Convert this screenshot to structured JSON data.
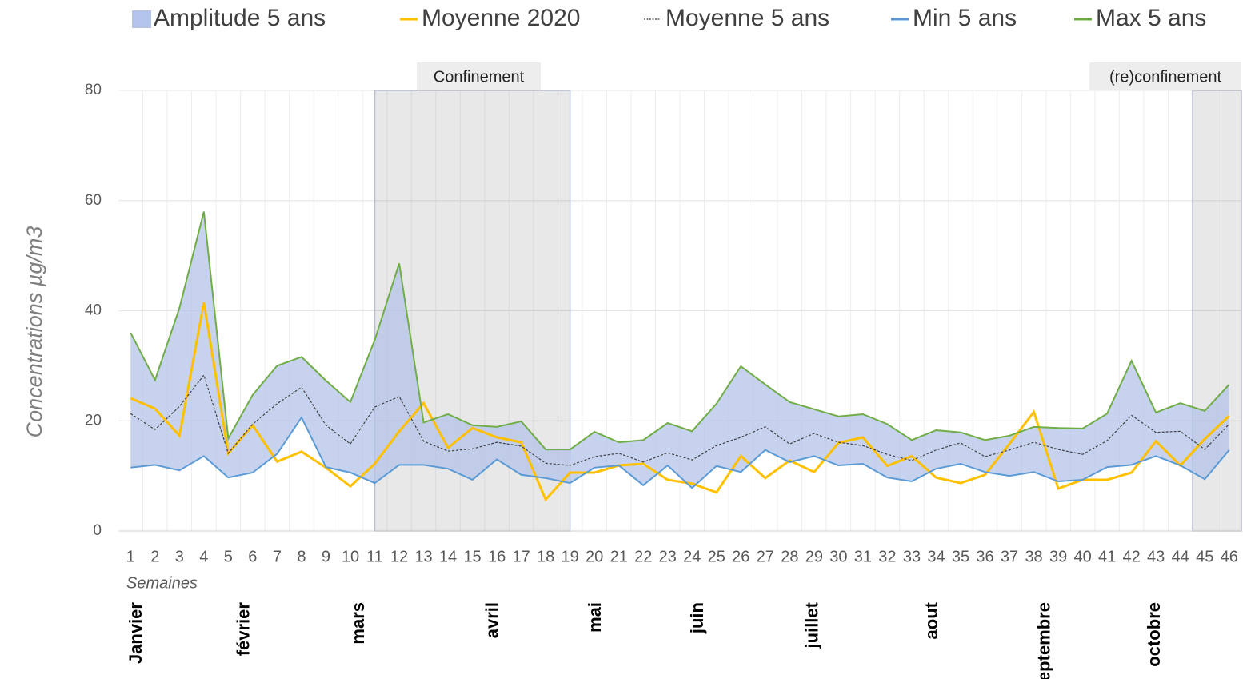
{
  "chart_data": {
    "type": "line",
    "y_title": "Concentrations µg/m3",
    "x_title": "Semaines",
    "x": [
      1,
      2,
      3,
      4,
      5,
      6,
      7,
      8,
      9,
      10,
      11,
      12,
      13,
      14,
      15,
      16,
      17,
      18,
      19,
      20,
      21,
      22,
      23,
      24,
      25,
      26,
      27,
      28,
      29,
      30,
      31,
      32,
      33,
      34,
      35,
      36,
      37,
      38,
      39,
      40,
      41,
      42,
      43,
      44,
      45,
      46
    ],
    "xlim": [
      0.5,
      46.5
    ],
    "ylim": [
      0,
      80
    ],
    "yticks": [
      0,
      20,
      40,
      60,
      80
    ],
    "grid": true,
    "series": [
      {
        "name": "Amplitude 5 ans",
        "style": "area",
        "color": "#b4c3ea",
        "values": [
          24.5,
          15.4,
          29.5,
          44.4,
          7.1,
          14.1,
          16,
          11,
          15.7,
          12.8,
          26,
          36.6,
          7.7,
          9.9,
          9.9,
          5.9,
          9.7,
          5.2,
          6.1,
          6.5,
          4.2,
          8.2,
          7.7,
          10.3,
          11.3,
          19.2,
          11.9,
          10.9,
          8.5,
          8.9,
          9,
          9.7,
          7.5,
          7,
          5.7,
          5.8,
          7.3,
          8.2,
          9.7,
          9.3,
          9.7,
          18.9,
          7.9,
          11.3,
          12.4,
          11.9
        ]
      },
      {
        "name": "Moyenne 2020",
        "style": "line",
        "color": "#ffc000",
        "values": [
          24.1,
          22.2,
          17.3,
          41.5,
          14.1,
          19.2,
          12.6,
          14.4,
          11.5,
          8.1,
          12.2,
          18.1,
          23.2,
          15.1,
          18.7,
          17,
          16.1,
          5.7,
          10.6,
          10.6,
          11.9,
          12.2,
          9.3,
          8.6,
          7,
          13.6,
          9.6,
          12.8,
          10.7,
          16,
          17,
          11.8,
          13.6,
          9.7,
          8.7,
          10.2,
          15.8,
          21.6,
          7.7,
          9.3,
          9.3,
          10.6,
          16.3,
          11.9,
          16.7,
          20.9
        ]
      },
      {
        "name": "Moyenne 5 ans",
        "style": "dashed",
        "color": "#404040",
        "values": [
          21.3,
          18.4,
          22.6,
          28.3,
          14.1,
          19.4,
          23.1,
          26.1,
          19.2,
          15.8,
          22.5,
          24.4,
          16.3,
          14.5,
          14.9,
          16.1,
          15.4,
          12.3,
          11.9,
          13.5,
          14.1,
          12.5,
          14.2,
          12.9,
          15.5,
          17,
          18.9,
          15.8,
          17.7,
          16.1,
          15.5,
          13.9,
          12.8,
          14.7,
          16,
          13.5,
          14.7,
          16.1,
          14.8,
          13.9,
          16.4,
          21,
          17.9,
          18.1,
          14.8,
          19.4
        ]
      },
      {
        "name": "Min 5 ans",
        "style": "line",
        "color": "#5b9bd5",
        "values": [
          11.5,
          12,
          11,
          13.6,
          9.7,
          10.6,
          14,
          20.6,
          11.6,
          10.6,
          8.7,
          12,
          12,
          11.3,
          9.3,
          13,
          10.2,
          9.6,
          8.7,
          11.5,
          11.9,
          8.3,
          11.9,
          7.8,
          11.8,
          10.7,
          14.7,
          12.5,
          13.6,
          11.9,
          12.2,
          9.7,
          9,
          11.3,
          12.2,
          10.7,
          10,
          10.7,
          9,
          9.3,
          11.6,
          12,
          13.6,
          11.9,
          9.4,
          14.7
        ]
      },
      {
        "name": "Max 5 ans",
        "style": "line",
        "color": "#70ad47",
        "values": [
          36,
          27.4,
          40.5,
          58,
          16.8,
          24.7,
          30,
          31.6,
          27.3,
          23.4,
          34.7,
          48.6,
          19.7,
          21.2,
          19.2,
          18.9,
          19.9,
          14.8,
          14.8,
          18,
          16.1,
          16.5,
          19.6,
          18.1,
          23.1,
          29.9,
          26.6,
          23.4,
          22.1,
          20.8,
          21.2,
          19.4,
          16.5,
          18.3,
          17.9,
          16.5,
          17.3,
          18.9,
          18.7,
          18.6,
          21.3,
          30.9,
          21.5,
          23.2,
          21.8,
          26.6
        ]
      }
    ],
    "periods": [
      {
        "label": "Confinement",
        "range": [
          11,
          19
        ]
      },
      {
        "label": "(re)confinement",
        "range": [
          44.5,
          46.5
        ]
      }
    ],
    "months": [
      {
        "label": "Janvier",
        "x": 1
      },
      {
        "label": "février",
        "x": 5.4
      },
      {
        "label": "mars",
        "x": 10.1
      },
      {
        "label": "avril",
        "x": 15.6
      },
      {
        "label": "mai",
        "x": 19.8
      },
      {
        "label": "juin",
        "x": 24
      },
      {
        "label": "juillet",
        "x": 28.7
      },
      {
        "label": "aout",
        "x": 33.6
      },
      {
        "label": "septembre",
        "x": 38.2
      },
      {
        "label": "octobre",
        "x": 42.7
      }
    ]
  }
}
